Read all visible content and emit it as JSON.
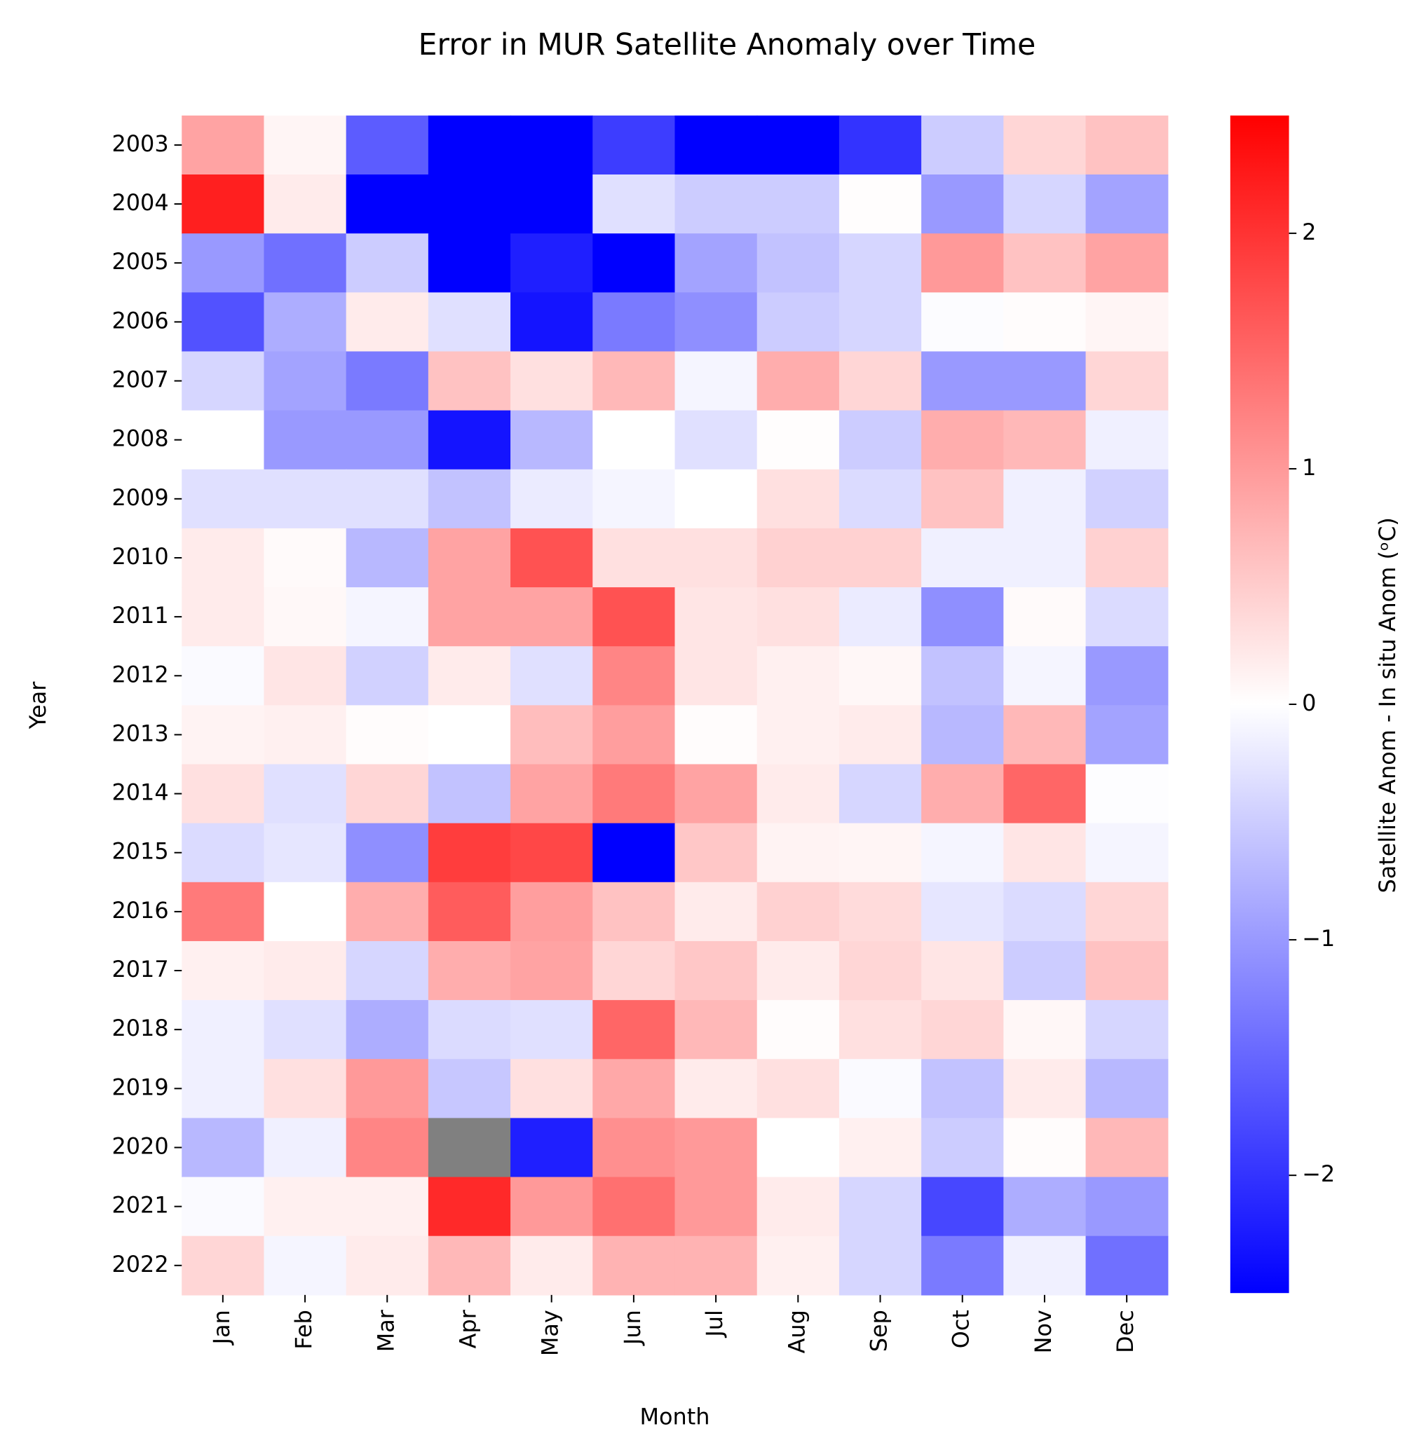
{
  "chart_data": {
    "type": "heatmap",
    "title": "Error in MUR Satellite Anomaly over Time",
    "x_label": "Month",
    "y_label": "Year",
    "categories": [
      "Jan",
      "Feb",
      "Mar",
      "Apr",
      "May",
      "Jun",
      "Jul",
      "Aug",
      "Sep",
      "Oct",
      "Nov",
      "Dec"
    ],
    "rows": [
      "2003",
      "2004",
      "2005",
      "2006",
      "2007",
      "2008",
      "2009",
      "2010",
      "2011",
      "2012",
      "2013",
      "2014",
      "2015",
      "2016",
      "2017",
      "2018",
      "2019",
      "2020",
      "2021",
      "2022"
    ],
    "values": [
      [
        0.9,
        0.1,
        -1.6,
        -2.6,
        -2.6,
        -1.9,
        -2.6,
        -2.6,
        -2.0,
        -0.5,
        0.4,
        0.6
      ],
      [
        2.2,
        0.2,
        -2.6,
        -2.6,
        -2.6,
        -0.3,
        -0.5,
        -0.5,
        0.02,
        -1.0,
        -0.4,
        -0.9
      ],
      [
        -1.0,
        -1.4,
        -0.5,
        -2.6,
        -2.2,
        -2.5,
        -0.9,
        -0.6,
        -0.4,
        1.0,
        0.6,
        0.9
      ],
      [
        -1.7,
        -0.8,
        0.2,
        -0.3,
        -2.3,
        -1.3,
        -1.1,
        -0.5,
        -0.4,
        -0.03,
        0.03,
        0.1
      ],
      [
        -0.4,
        -0.9,
        -1.3,
        0.6,
        0.3,
        0.7,
        -0.1,
        0.8,
        0.4,
        -1.0,
        -1.0,
        0.4
      ],
      [
        0.0,
        -1.0,
        -1.0,
        -2.3,
        -0.7,
        0.0,
        -0.3,
        0.02,
        -0.5,
        0.8,
        0.7,
        -0.15
      ],
      [
        -0.3,
        -0.3,
        -0.3,
        -0.6,
        -0.2,
        -0.1,
        0.0,
        0.3,
        -0.35,
        0.6,
        -0.15,
        -0.45
      ],
      [
        0.2,
        0.05,
        -0.7,
        0.9,
        1.7,
        0.3,
        0.3,
        0.45,
        0.45,
        -0.15,
        -0.15,
        0.45
      ],
      [
        0.2,
        0.07,
        -0.1,
        0.9,
        0.9,
        1.7,
        0.25,
        0.3,
        -0.2,
        -1.1,
        0.05,
        -0.35
      ],
      [
        -0.05,
        0.25,
        -0.45,
        0.2,
        -0.3,
        1.2,
        0.25,
        0.15,
        0.08,
        -0.6,
        -0.1,
        -1.0
      ],
      [
        0.12,
        0.15,
        0.03,
        0.0,
        0.65,
        0.95,
        0.03,
        0.15,
        0.2,
        -0.7,
        0.7,
        -0.9
      ],
      [
        0.3,
        -0.3,
        0.4,
        -0.6,
        0.9,
        1.3,
        0.9,
        0.2,
        -0.4,
        0.8,
        1.5,
        -0.02
      ],
      [
        -0.35,
        -0.25,
        -1.1,
        1.9,
        1.8,
        -2.5,
        0.55,
        0.12,
        0.1,
        -0.1,
        0.25,
        -0.1
      ],
      [
        1.3,
        0.0,
        0.8,
        1.6,
        0.95,
        0.6,
        0.2,
        0.45,
        0.35,
        -0.25,
        -0.35,
        0.4
      ],
      [
        0.15,
        0.2,
        -0.4,
        0.8,
        0.9,
        0.4,
        0.55,
        0.2,
        0.4,
        0.25,
        -0.5,
        0.6
      ],
      [
        -0.15,
        -0.3,
        -0.8,
        -0.35,
        -0.3,
        1.5,
        0.7,
        0.03,
        0.3,
        0.4,
        0.08,
        -0.4
      ],
      [
        -0.15,
        0.3,
        1.0,
        -0.55,
        0.3,
        0.85,
        0.2,
        0.3,
        -0.05,
        -0.6,
        0.2,
        -0.7
      ],
      [
        -0.7,
        -0.15,
        1.2,
        null,
        -2.2,
        1.1,
        1.0,
        0.0,
        0.15,
        -0.5,
        0.03,
        0.7
      ],
      [
        -0.05,
        0.15,
        0.15,
        2.1,
        1.0,
        1.4,
        1.0,
        0.2,
        -0.4,
        -1.8,
        -0.8,
        -1.0
      ],
      [
        0.4,
        -0.1,
        0.2,
        0.7,
        0.2,
        0.75,
        0.75,
        0.15,
        -0.4,
        -1.3,
        -0.15,
        -1.4
      ]
    ],
    "cmap": "bwr",
    "nan_color": "#808080",
    "clim": [
      -2.5,
      2.5
    ],
    "cticks": [
      {
        "value": -2,
        "label": "−2"
      },
      {
        "value": -1,
        "label": "−1"
      },
      0,
      1,
      2
    ],
    "colorbar_label": "Satellite Anom - In situ Anom (ᵒC)"
  }
}
